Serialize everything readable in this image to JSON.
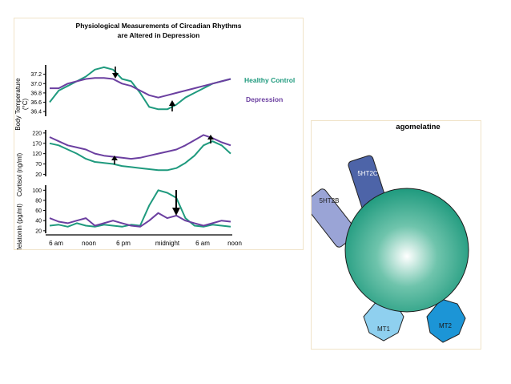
{
  "chart_panel": {
    "title_line1": "Physiological Measurements of Circadian Rhythms",
    "title_line2": "are Altered in Depression",
    "x_ticks": [
      "6 am",
      "noon",
      "6 pm",
      "midnight",
      "6 am",
      "noon"
    ],
    "legend": {
      "healthy": "Healthy Control",
      "depression": "Depression"
    },
    "colors": {
      "healthy": "#1f9a7e",
      "depression": "#6b3fa0",
      "axis": "#000000"
    }
  },
  "chart_data": [
    {
      "type": "line",
      "ylabel": "Body Temperature (°C)",
      "ylabel_line1": "Body Temperature",
      "ylabel_line2": "(°C)",
      "y_ticks": [
        "37.2",
        "37.0",
        "36.8",
        "36.6",
        "36.4"
      ],
      "y_tick_values": [
        37.2,
        37.0,
        36.8,
        36.6,
        36.4
      ],
      "ylim": [
        36.3,
        37.4
      ],
      "x": [
        0,
        1.5,
        3,
        4.5,
        6,
        7.5,
        9,
        10.5,
        12,
        13.5,
        15,
        16.5,
        18,
        19.5,
        21,
        22.5,
        24,
        25.5,
        27,
        28.5,
        30
      ],
      "series": [
        {
          "name": "Healthy Control",
          "values": [
            36.6,
            36.85,
            36.95,
            37.05,
            37.15,
            37.3,
            37.35,
            37.3,
            37.1,
            37.05,
            36.8,
            36.5,
            36.45,
            36.45,
            36.55,
            36.7,
            36.8,
            36.9,
            37.0,
            37.05,
            37.1
          ]
        },
        {
          "name": "Depression",
          "values": [
            36.9,
            36.9,
            37.0,
            37.05,
            37.1,
            37.12,
            37.12,
            37.1,
            37.0,
            36.95,
            36.85,
            36.75,
            36.7,
            36.75,
            36.8,
            36.85,
            36.9,
            36.95,
            37.0,
            37.05,
            37.1
          ]
        }
      ]
    },
    {
      "type": "line",
      "ylabel": "Cortisol (ng/ml)",
      "y_ticks": [
        "220",
        "170",
        "120",
        "70",
        "20"
      ],
      "y_tick_values": [
        220,
        170,
        120,
        70,
        20
      ],
      "ylim": [
        10,
        235
      ],
      "x": [
        0,
        1.5,
        3,
        4.5,
        6,
        7.5,
        9,
        10.5,
        12,
        13.5,
        15,
        16.5,
        18,
        19.5,
        21,
        22.5,
        24,
        25.5,
        27,
        28.5,
        30
      ],
      "series": [
        {
          "name": "Healthy Control",
          "values": [
            170,
            160,
            140,
            120,
            95,
            80,
            75,
            70,
            60,
            55,
            50,
            45,
            40,
            40,
            50,
            75,
            110,
            160,
            180,
            160,
            120
          ]
        },
        {
          "name": "Depression",
          "values": [
            200,
            180,
            160,
            150,
            140,
            120,
            110,
            105,
            100,
            95,
            100,
            110,
            120,
            130,
            140,
            160,
            185,
            210,
            195,
            175,
            160
          ]
        }
      ]
    },
    {
      "type": "line",
      "ylabel": "Melatonin (pg/ml)",
      "y_ticks": [
        "100",
        "80",
        "60",
        "40",
        "20"
      ],
      "y_tick_values": [
        100,
        80,
        60,
        40,
        20
      ],
      "ylim": [
        15,
        110
      ],
      "x": [
        0,
        1.5,
        3,
        4.5,
        6,
        7.5,
        9,
        10.5,
        12,
        13.5,
        15,
        16.5,
        18,
        19.5,
        21,
        22.5,
        24,
        25.5,
        27,
        28.5,
        30
      ],
      "series": [
        {
          "name": "Healthy Control",
          "values": [
            30,
            32,
            28,
            35,
            30,
            28,
            32,
            30,
            28,
            32,
            30,
            70,
            100,
            95,
            85,
            45,
            30,
            28,
            32,
            30,
            28
          ]
        },
        {
          "name": "Depression",
          "values": [
            45,
            38,
            35,
            40,
            45,
            30,
            35,
            40,
            35,
            30,
            28,
            40,
            55,
            45,
            50,
            40,
            35,
            30,
            35,
            40,
            38
          ]
        }
      ]
    }
  ],
  "diagram": {
    "title": "agomelatine",
    "receptors": [
      {
        "label": "5HT2C",
        "color": "#4d64a8"
      },
      {
        "label": "5HT2B",
        "color": "#9aa4d6"
      },
      {
        "label": "MT1",
        "color": "#8fd0ef"
      },
      {
        "label": "MT2",
        "color": "#1c95d6"
      }
    ],
    "core_color": "#1f9a7e"
  }
}
